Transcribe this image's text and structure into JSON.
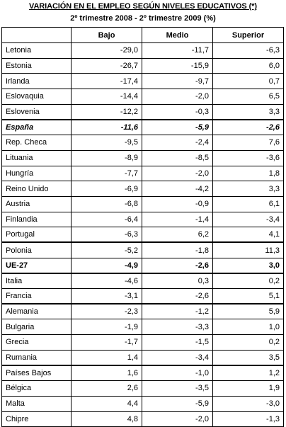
{
  "title": "VARIACIÓN EN EL EMPLEO SEGÚN NIVELES EDUCATIVOS (*)",
  "subtitle": "2º trimestre 2008 - 2º trimestre 2009 (%)",
  "headers": [
    "",
    "Bajo",
    "Medio",
    "Superior"
  ],
  "rows": [
    {
      "name": "Letonia",
      "bajo": "-29,0",
      "medio": "-11,7",
      "superior": "-6,3"
    },
    {
      "name": "Estonia",
      "bajo": "-26,7",
      "medio": "-15,9",
      "superior": "6,0"
    },
    {
      "name": "Irlanda",
      "bajo": "-17,4",
      "medio": "-9,7",
      "superior": "0,7"
    },
    {
      "name": "Eslovaquia",
      "bajo": "-14,4",
      "medio": "-2,0",
      "superior": "6,5"
    },
    {
      "name": "Eslovenia",
      "bajo": "-12,2",
      "medio": "-0,3",
      "superior": "3,3"
    },
    {
      "name": "España",
      "bajo": "-11,6",
      "medio": "-5,9",
      "superior": "-2,6"
    },
    {
      "name": "Rep. Checa",
      "bajo": "-9,5",
      "medio": "-2,4",
      "superior": "7,6"
    },
    {
      "name": "Lituania",
      "bajo": "-8,9",
      "medio": "-8,5",
      "superior": "-3,6"
    },
    {
      "name": "Hungría",
      "bajo": "-7,7",
      "medio": "-2,0",
      "superior": "1,8"
    },
    {
      "name": "Reino Unido",
      "bajo": "-6,9",
      "medio": "-4,2",
      "superior": "3,3"
    },
    {
      "name": "Austria",
      "bajo": "-6,8",
      "medio": "-0,9",
      "superior": "6,1"
    },
    {
      "name": "Finlandia",
      "bajo": "-6,4",
      "medio": "-1,4",
      "superior": "-3,4"
    },
    {
      "name": "Portugal",
      "bajo": "-6,3",
      "medio": "6,2",
      "superior": "4,1"
    },
    {
      "name": "Polonia",
      "bajo": "-5,2",
      "medio": "-1,8",
      "superior": "11,3"
    },
    {
      "name": "UE-27",
      "bajo": "-4,9",
      "medio": "-2,6",
      "superior": "3,0"
    },
    {
      "name": "Italia",
      "bajo": "-4,6",
      "medio": "0,3",
      "superior": "0,2"
    },
    {
      "name": "Francia",
      "bajo": "-3,1",
      "medio": "-2,6",
      "superior": "5,1"
    },
    {
      "name": "Alemania",
      "bajo": "-2,3",
      "medio": "-1,2",
      "superior": "5,9"
    },
    {
      "name": "Bulgaria",
      "bajo": "-1,9",
      "medio": "-3,3",
      "superior": "1,0"
    },
    {
      "name": "Grecia",
      "bajo": "-1,7",
      "medio": "-1,5",
      "superior": "0,2"
    },
    {
      "name": "Rumania",
      "bajo": "1,4",
      "medio": "-3,4",
      "superior": "3,5"
    },
    {
      "name": "Países Bajos",
      "bajo": "1,6",
      "medio": "-1,0",
      "superior": "1,2"
    },
    {
      "name": "Bélgica",
      "bajo": "2,6",
      "medio": "-3,5",
      "superior": "1,9"
    },
    {
      "name": "Malta",
      "bajo": "4,4",
      "medio": "-5,9",
      "superior": "-3,0"
    },
    {
      "name": "Chipre",
      "bajo": "4,8",
      "medio": "-2,0",
      "superior": "-1,3"
    }
  ]
}
